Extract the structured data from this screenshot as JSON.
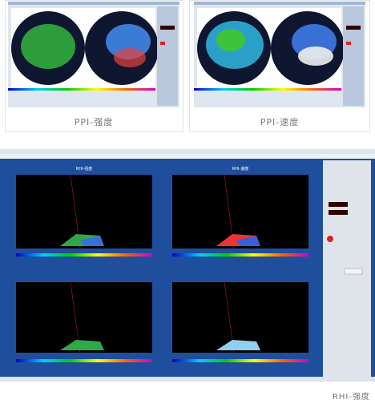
{
  "cards": [
    {
      "caption": "PPI-强度"
    },
    {
      "caption": "PPI-速度"
    }
  ],
  "screenshot": {
    "panels": [
      {
        "title": "RHI-强度"
      },
      {
        "title": "RHI-速度"
      }
    ]
  },
  "caption": "RHI-强度"
}
